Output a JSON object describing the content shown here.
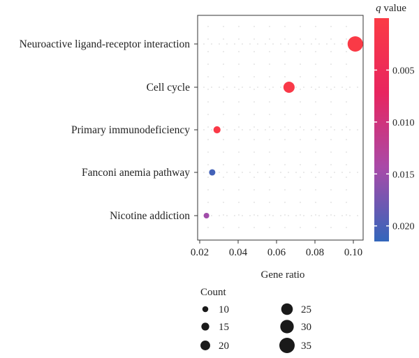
{
  "chart_data": {
    "type": "scatter",
    "title": "",
    "xlabel": "Gene ratio",
    "ylabel": "",
    "xlim": [
      0.018,
      0.104
    ],
    "x_ticks": [
      {
        "value": 0.02,
        "label": "0.02"
      },
      {
        "value": 0.04,
        "label": "0.04"
      },
      {
        "value": 0.06,
        "label": "0.06"
      },
      {
        "value": 0.08,
        "label": "0.08"
      },
      {
        "value": 0.1,
        "label": "0.10"
      }
    ],
    "categories": [
      "Neuroactive ligand-receptor interaction",
      "Cell cycle",
      "Primary immunodeficiency",
      "Fanconi anemia pathway",
      "Nicotine addiction"
    ],
    "points": [
      {
        "category": "Neuroactive ligand-receptor interaction",
        "gene_ratio": 0.101,
        "count": 35,
        "q_value": 0.0003
      },
      {
        "category": "Cell cycle",
        "gene_ratio": 0.0665,
        "count": 24,
        "q_value": 0.0008
      },
      {
        "category": "Primary immunodeficiency",
        "gene_ratio": 0.029,
        "count": 13,
        "q_value": 0.0005
      },
      {
        "category": "Fanconi anemia pathway",
        "gene_ratio": 0.0265,
        "count": 11,
        "q_value": 0.0205
      },
      {
        "category": "Nicotine addiction",
        "gene_ratio": 0.0235,
        "count": 9,
        "q_value": 0.0148
      }
    ],
    "colorbar": {
      "title_italic": "q",
      "title_rest": " value",
      "range": [
        0.0,
        0.0215
      ],
      "stops": [
        "#3366bb",
        "#a94aa8",
        "#e8255f",
        "#fb3b45"
      ],
      "ticks": [
        {
          "value": 0.005,
          "label": "0.005"
        },
        {
          "value": 0.01,
          "label": "0.010"
        },
        {
          "value": 0.015,
          "label": "0.015"
        },
        {
          "value": 0.02,
          "label": "0.020"
        }
      ]
    },
    "size_legend": {
      "title": "Count",
      "items": [
        {
          "value": 10,
          "label": "10"
        },
        {
          "value": 15,
          "label": "15"
        },
        {
          "value": 20,
          "label": "20"
        },
        {
          "value": 25,
          "label": "25"
        },
        {
          "value": 30,
          "label": "30"
        },
        {
          "value": 35,
          "label": "35"
        }
      ]
    },
    "grid": "dotted"
  }
}
